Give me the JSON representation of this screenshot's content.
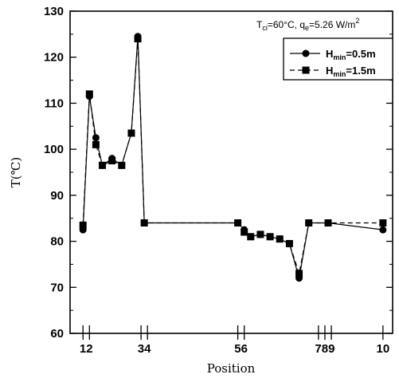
{
  "chart_data": {
    "type": "line",
    "xlabel": "Position",
    "ylabel": "T(℃)",
    "ylim": [
      60,
      130
    ],
    "yticks": [
      60,
      70,
      80,
      90,
      100,
      110,
      120,
      130
    ],
    "xlim": [
      0,
      100
    ],
    "xtick_marks": [
      4,
      6,
      22,
      24,
      52,
      54,
      77,
      79,
      81,
      97
    ],
    "xtick_labels": [
      {
        "text": "12",
        "x": 5
      },
      {
        "text": "34",
        "x": 23
      },
      {
        "text": "56",
        "x": 53
      },
      {
        "text": "789",
        "x": 79
      },
      {
        "text": "10",
        "x": 97
      }
    ],
    "annotation": {
      "prefix": "T",
      "sub1": "ci",
      "middle": "=60°C, q",
      "sub2": "e",
      "suffix": "=5.26 W/m",
      "sup": "2"
    },
    "legend_position": "top-right",
    "series": [
      {
        "name_main": "H",
        "name_sub": "min",
        "name_tail": "=0.5m",
        "marker": "circle",
        "line": "solid",
        "color": "#000000",
        "x": [
          4,
          6,
          8,
          10,
          13,
          16,
          19,
          21,
          23,
          52,
          54,
          56,
          59,
          62,
          65,
          68,
          71,
          74,
          80,
          97
        ],
        "y": [
          82.5,
          111.5,
          102.5,
          96.5,
          98,
          96.5,
          103.5,
          124.5,
          84,
          84,
          82.5,
          81,
          81.5,
          81,
          80.5,
          79.5,
          72,
          84,
          84,
          82.5
        ]
      },
      {
        "name_main": "H",
        "name_sub": "min",
        "name_tail": "=1.5m",
        "marker": "square",
        "line": "dashed",
        "color": "#000000",
        "x": [
          4,
          6,
          8,
          10,
          13,
          16,
          19,
          21,
          23,
          52,
          54,
          56,
          59,
          62,
          65,
          68,
          71,
          74,
          80,
          97
        ],
        "y": [
          83.5,
          112,
          101,
          96.5,
          97.5,
          96.5,
          103.5,
          124,
          84,
          84,
          82,
          81,
          81.5,
          81,
          80.5,
          79.5,
          73,
          84,
          84,
          84
        ]
      }
    ]
  }
}
